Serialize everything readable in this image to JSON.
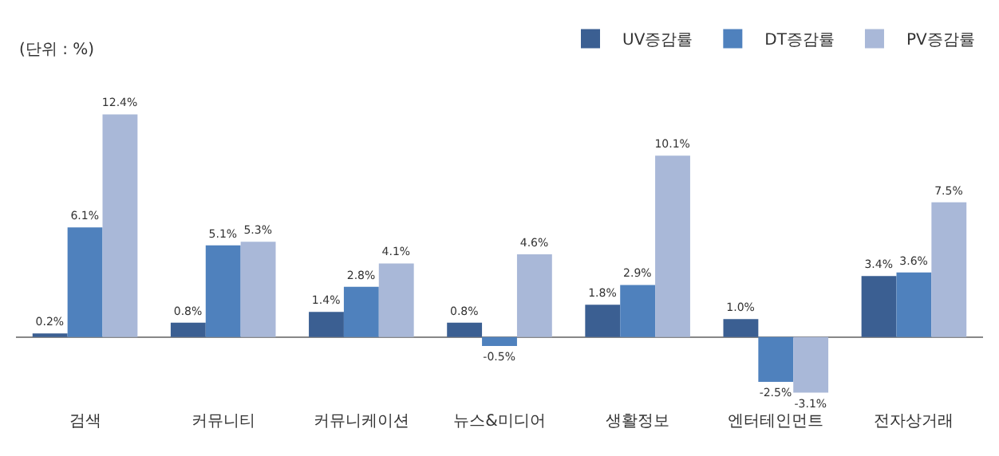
{
  "chart_data": {
    "type": "bar",
    "categories": [
      "검색",
      "커뮤니티",
      "커뮤니케이션",
      "뉴스&미디어",
      "생활정보",
      "엔터테인먼트",
      "전자상거래"
    ],
    "series": [
      {
        "name": "UV증감률",
        "color": "#3b5f92",
        "values": [
          0.2,
          0.8,
          1.4,
          0.8,
          1.8,
          1.0,
          3.4
        ],
        "value_labels": [
          "0.2%",
          "0.8%",
          "1.4%",
          "0.8%",
          "1.8%",
          "1.0%",
          "3.4%"
        ]
      },
      {
        "name": "DT증감률",
        "color": "#4f81bd",
        "values": [
          6.1,
          5.1,
          2.8,
          -0.5,
          2.9,
          -2.5,
          3.6
        ],
        "value_labels": [
          "6.1%",
          "5.1%",
          "2.8%",
          "-0.5%",
          "2.9%",
          "-2.5%",
          "3.6%"
        ]
      },
      {
        "name": "PV증감률",
        "color": "#a9b8d8",
        "values": [
          12.4,
          5.3,
          4.1,
          4.6,
          10.1,
          -3.1,
          7.5
        ],
        "value_labels": [
          "12.4%",
          "5.3%",
          "4.1%",
          "4.6%",
          "10.1%",
          "-3.1%",
          "7.5%"
        ]
      }
    ],
    "annotations": [
      "(단위 : %)"
    ],
    "legend": "top right"
  }
}
